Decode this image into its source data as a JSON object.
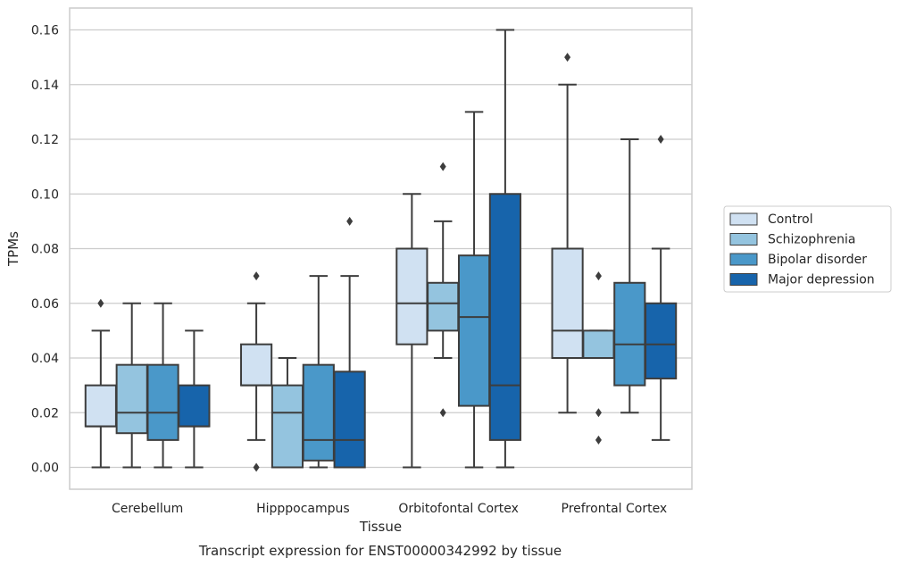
{
  "caption": "Transcript expression for ENST00000342992 by tissue",
  "chart_data": {
    "type": "box",
    "xlabel": "Tissue",
    "ylabel": "TPMs",
    "ylim": [
      -0.008,
      0.168
    ],
    "yticks": [
      0.0,
      0.02,
      0.04,
      0.06,
      0.08,
      0.1,
      0.12,
      0.14,
      0.16
    ],
    "ytick_labels": [
      "0.00",
      "0.02",
      "0.04",
      "0.06",
      "0.08",
      "0.10",
      "0.12",
      "0.14",
      "0.16"
    ],
    "grid": "horizontal",
    "legend_position": "right",
    "categories": [
      "Cerebellum",
      "Hipppocampus",
      "Orbitofontal Cortex",
      "Prefrontal Cortex"
    ],
    "series": [
      {
        "name": "Control",
        "color": "#d0e1f2",
        "boxes": [
          {
            "whislo": 0.0,
            "q1": 0.015,
            "med": 0.015,
            "q3": 0.03,
            "whishi": 0.05,
            "fliers": [
              0.06
            ]
          },
          {
            "whislo": 0.01,
            "q1": 0.03,
            "med": 0.03,
            "q3": 0.045,
            "whishi": 0.06,
            "fliers": [
              0.07,
              0.0
            ]
          },
          {
            "whislo": 0.0,
            "q1": 0.045,
            "med": 0.06,
            "q3": 0.08,
            "whishi": 0.1,
            "fliers": []
          },
          {
            "whislo": 0.02,
            "q1": 0.04,
            "med": 0.05,
            "q3": 0.08,
            "whishi": 0.14,
            "fliers": [
              0.15
            ]
          }
        ]
      },
      {
        "name": "Schizophrenia",
        "color": "#94c4df",
        "boxes": [
          {
            "whislo": 0.0,
            "q1": 0.0125,
            "med": 0.02,
            "q3": 0.0375,
            "whishi": 0.06,
            "fliers": []
          },
          {
            "whislo": 0.0,
            "q1": 0.0,
            "med": 0.02,
            "q3": 0.03,
            "whishi": 0.04,
            "fliers": []
          },
          {
            "whislo": 0.04,
            "q1": 0.05,
            "med": 0.06,
            "q3": 0.0675,
            "whishi": 0.09,
            "fliers": [
              0.11,
              0.02
            ]
          },
          {
            "whislo": 0.04,
            "q1": 0.04,
            "med": 0.04,
            "q3": 0.05,
            "whishi": 0.05,
            "fliers": [
              0.07,
              0.02,
              0.01
            ]
          }
        ]
      },
      {
        "name": "Bipolar disorder",
        "color": "#4a98c9",
        "boxes": [
          {
            "whislo": 0.0,
            "q1": 0.01,
            "med": 0.02,
            "q3": 0.0375,
            "whishi": 0.06,
            "fliers": []
          },
          {
            "whislo": 0.0,
            "q1": 0.0025,
            "med": 0.01,
            "q3": 0.0375,
            "whishi": 0.07,
            "fliers": []
          },
          {
            "whislo": 0.0,
            "q1": 0.0225,
            "med": 0.055,
            "q3": 0.0775,
            "whishi": 0.13,
            "fliers": []
          },
          {
            "whislo": 0.02,
            "q1": 0.03,
            "med": 0.045,
            "q3": 0.0675,
            "whishi": 0.12,
            "fliers": []
          }
        ]
      },
      {
        "name": "Major depression",
        "color": "#1764ab",
        "boxes": [
          {
            "whislo": 0.0,
            "q1": 0.015,
            "med": 0.015,
            "q3": 0.03,
            "whishi": 0.05,
            "fliers": []
          },
          {
            "whislo": 0.0,
            "q1": 0.0,
            "med": 0.01,
            "q3": 0.035,
            "whishi": 0.07,
            "fliers": [
              0.09
            ]
          },
          {
            "whislo": 0.0,
            "q1": 0.01,
            "med": 0.03,
            "q3": 0.1,
            "whishi": 0.16,
            "fliers": []
          },
          {
            "whislo": 0.01,
            "q1": 0.0325,
            "med": 0.045,
            "q3": 0.06,
            "whishi": 0.08,
            "fliers": [
              0.12
            ]
          }
        ]
      }
    ]
  },
  "colors": {
    "box_edge": "#3d3d3d",
    "grid": "#cccccc",
    "frame": "#cccccc",
    "text": "#262626"
  }
}
